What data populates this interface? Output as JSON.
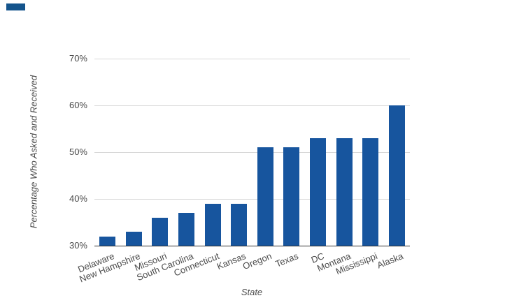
{
  "corner_mark": {
    "color": "#14548C"
  },
  "chart_data": {
    "type": "bar",
    "title": "",
    "xlabel": "State",
    "ylabel": "Percentage Who Asked and Received",
    "categories": [
      "Delaware",
      "New Hampshire",
      "Missouri",
      "South Carolina",
      "Connecticut",
      "Kansas",
      "Oregon",
      "Texas",
      "DC",
      "Montana",
      "Mississippi",
      "Alaska"
    ],
    "values": [
      32,
      33,
      36,
      37,
      39,
      39,
      51,
      51,
      53,
      53,
      53,
      60
    ],
    "ylim": [
      30,
      70
    ],
    "yticks": [
      30,
      40,
      50,
      60,
      70
    ],
    "ytick_labels": [
      "30%",
      "40%",
      "50%",
      "60%",
      "70%"
    ],
    "grid": "horizontal",
    "legend": "none",
    "bar_color": "#17559E",
    "grid_color": "#d8d8d8",
    "axis_line_color": "#303030",
    "label_color": "#4a4a4a"
  }
}
